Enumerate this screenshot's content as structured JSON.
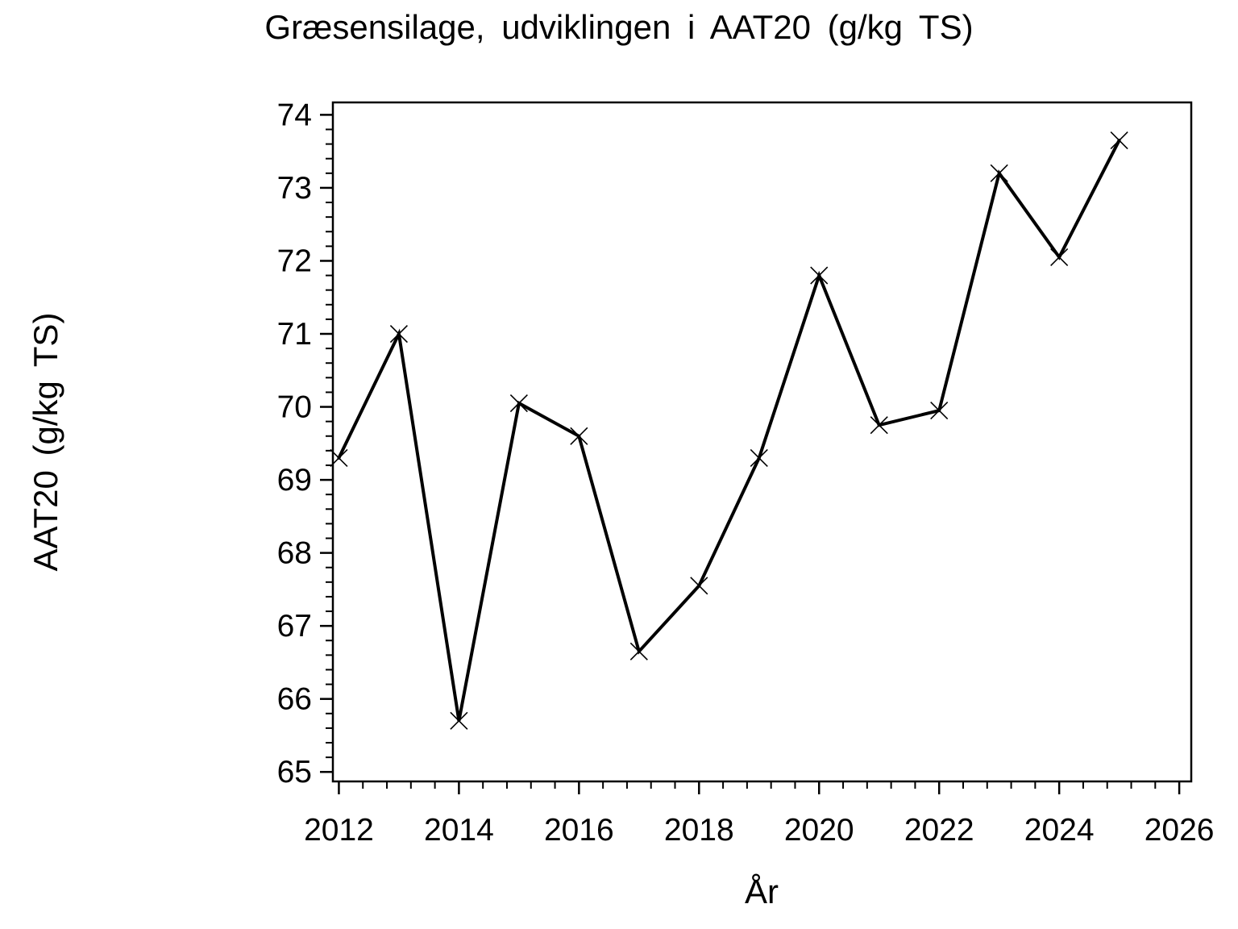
{
  "figure": {
    "background": "#ffffff",
    "foreground": "#000000"
  },
  "chart_data": {
    "type": "line",
    "title": "Græsensilage, udviklingen i AAT20 (g/kg TS)",
    "xlabel": "År",
    "ylabel": "AAT20 (g/kg TS)",
    "series": [
      {
        "name": "AAT20",
        "x": [
          2012,
          2013,
          2014,
          2015,
          2016,
          2017,
          2018,
          2019,
          2020,
          2021,
          2022,
          2023,
          2024,
          2025
        ],
        "values": [
          69.3,
          71.0,
          65.7,
          70.05,
          69.6,
          66.65,
          67.55,
          69.3,
          71.8,
          69.75,
          69.95,
          73.2,
          72.05,
          73.65
        ],
        "marker": "x",
        "color": "#000000"
      }
    ],
    "xlim": [
      2011.9,
      2026.2
    ],
    "ylim": [
      64.87,
      74.17
    ],
    "x_major_ticks": [
      2012,
      2014,
      2016,
      2018,
      2020,
      2022,
      2024,
      2026
    ],
    "y_major_ticks": [
      65,
      66,
      67,
      68,
      69,
      70,
      71,
      72,
      73,
      74
    ],
    "x_minor_step": 0.4,
    "y_minor_step": 0.2,
    "grid": false,
    "legend": false,
    "frame": true
  }
}
